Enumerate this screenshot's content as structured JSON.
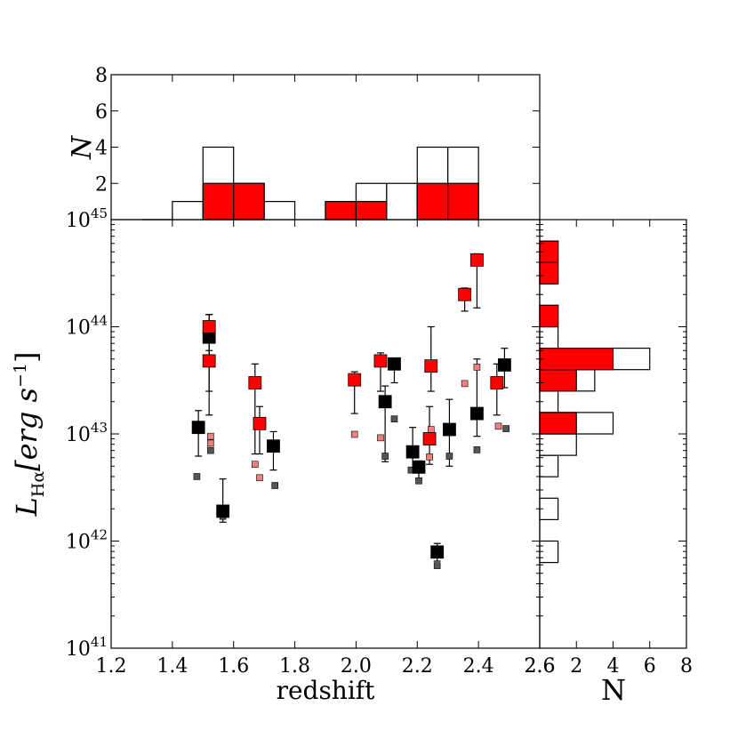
{
  "chart_data": [
    {
      "type": "scatter",
      "name": "luminosity-vs-redshift",
      "xlabel": "redshift",
      "ylabel": "L_Hα[erg s^-1]",
      "ylabel_parts": {
        "main": "L",
        "sub": "Hα",
        "bracket": "[erg s",
        "sup": "−1",
        "close": "]"
      },
      "xlim": [
        1.2,
        2.6
      ],
      "ylim": [
        1e+41,
        1e+45
      ],
      "yscale": "log",
      "x_ticks": [
        "1.2",
        "1.4",
        "1.6",
        "1.8",
        "2.0",
        "2.2",
        "2.4",
        "2.6"
      ],
      "y_ticks": [
        {
          "value": 1e+41,
          "base": "10",
          "exp": "41"
        },
        {
          "value": 1e+42,
          "base": "10",
          "exp": "42"
        },
        {
          "value": 1e+43,
          "base": "10",
          "exp": "43"
        },
        {
          "value": 1e+44,
          "base": "10",
          "exp": "44"
        },
        {
          "value": 1e+45,
          "base": "10",
          "exp": "45"
        }
      ],
      "grid": false,
      "series": [
        {
          "role": "black",
          "color": "#000000",
          "points": [
            {
              "x": 1.485,
              "y": 1.15e+43,
              "lo": 6.2e+42,
              "hi": 1.65e+43
            },
            {
              "x": 1.52,
              "y": 8e+43,
              "lo": 1.5e+43,
              "hi": 1.3e+44
            },
            {
              "x": 1.565,
              "y": 1.9e+42,
              "lo": 1.5e+42,
              "hi": 3.8e+42
            },
            {
              "x": 1.73,
              "y": 7.7e+42,
              "lo": 4.6e+42,
              "hi": 1.05e+43
            },
            {
              "x": 2.095,
              "y": 2e+43,
              "lo": 5.5e+42,
              "hi": 2.8e+43
            },
            {
              "x": 2.125,
              "y": 4.5e+43,
              "lo": 3e+43,
              "hi": 5e+43
            },
            {
              "x": 2.185,
              "y": 6.8e+42,
              "lo": 4.5e+42,
              "hi": 1.15e+43
            },
            {
              "x": 2.205,
              "y": 4.9e+42,
              "lo": 3.8e+42,
              "hi": 5.6e+42
            },
            {
              "x": 2.265,
              "y": 7.9e+41,
              "lo": 6.5e+41,
              "hi": 9.5e+41
            },
            {
              "x": 2.305,
              "y": 1.1e+43,
              "lo": 5e+42,
              "hi": 2.1e+43
            },
            {
              "x": 2.395,
              "y": 1.55e+43,
              "lo": 9.5e+42,
              "hi": 5e+43
            },
            {
              "x": 2.485,
              "y": 4.4e+43,
              "lo": 2.7e+43,
              "hi": 6.3e+43
            }
          ]
        },
        {
          "role": "red",
          "color": "#ff0000",
          "points": [
            {
              "x": 1.52,
              "y": 1e+44,
              "lo": 5e+43,
              "hi": 1.3e+44
            },
            {
              "x": 1.52,
              "y": 4.8e+43,
              "lo": 2.5e+43,
              "hi": 6e+43
            },
            {
              "x": 1.67,
              "y": 3e+43,
              "lo": 6.5e+42,
              "hi": 4.5e+43
            },
            {
              "x": 1.685,
              "y": 1.25e+43,
              "lo": 6.5e+42,
              "hi": 1.8e+43
            },
            {
              "x": 1.995,
              "y": 3.2e+43,
              "lo": 1.55e+43,
              "hi": 3.8e+43
            },
            {
              "x": 2.08,
              "y": 4.8e+43,
              "lo": 2.5e+43,
              "hi": 5.7e+43
            },
            {
              "x": 2.245,
              "y": 4.3e+43,
              "lo": 2.5e+43,
              "hi": 1e+44
            },
            {
              "x": 2.24,
              "y": 9e+42,
              "lo": 5.2e+42,
              "hi": 1.8e+43
            },
            {
              "x": 2.355,
              "y": 2e+44,
              "lo": 1.4e+44,
              "hi": 2.3e+44
            },
            {
              "x": 2.395,
              "y": 4.2e+44,
              "lo": 1.5e+44,
              "hi": 4.8e+44
            },
            {
              "x": 2.46,
              "y": 3e+43,
              "lo": 1.5e+43,
              "hi": 4.5e+43
            }
          ]
        },
        {
          "role": "grey-small",
          "color": "#555555",
          "points": [
            {
              "x": 1.48,
              "y": 4e+42
            },
            {
              "x": 1.525,
              "y": 7e+42
            },
            {
              "x": 1.565,
              "y": 1.7e+42
            },
            {
              "x": 1.735,
              "y": 3.3e+42
            },
            {
              "x": 2.095,
              "y": 6.2e+42
            },
            {
              "x": 2.125,
              "y": 1.38e+43
            },
            {
              "x": 2.18,
              "y": 4.6e+42
            },
            {
              "x": 2.205,
              "y": 3.65e+42
            },
            {
              "x": 2.265,
              "y": 5.9e+41
            },
            {
              "x": 2.305,
              "y": 6.2e+42
            },
            {
              "x": 2.395,
              "y": 7.1e+42
            },
            {
              "x": 2.49,
              "y": 1.12e+43
            }
          ]
        },
        {
          "role": "pink-small",
          "color": "#f08080",
          "points": [
            {
              "x": 1.525,
              "y": 9.5e+42
            },
            {
              "x": 1.525,
              "y": 8.2e+42
            },
            {
              "x": 1.67,
              "y": 5.2e+42
            },
            {
              "x": 1.685,
              "y": 3.9e+42
            },
            {
              "x": 1.995,
              "y": 9.9e+42
            },
            {
              "x": 2.08,
              "y": 9.2e+42
            },
            {
              "x": 2.245,
              "y": 1.1e+43
            },
            {
              "x": 2.24,
              "y": 6.1e+42
            },
            {
              "x": 2.355,
              "y": 2.95e+43
            },
            {
              "x": 2.395,
              "y": 4.2e+43
            },
            {
              "x": 2.465,
              "y": 1.18e+43
            }
          ]
        }
      ]
    },
    {
      "type": "bar",
      "name": "redshift-histogram",
      "ylabel": "N",
      "xlim": [
        1.2,
        2.6
      ],
      "ylim": [
        0,
        8
      ],
      "y_ticks": [
        "2",
        "4",
        "6",
        "8"
      ],
      "bin_edges": [
        1.3,
        1.4,
        1.5,
        1.6,
        1.7,
        1.8,
        1.9,
        2.0,
        2.1,
        2.2,
        2.3,
        2.4
      ],
      "series": [
        {
          "role": "all",
          "color": "#ffffff",
          "values": [
            0,
            1,
            4,
            2,
            1,
            0,
            1,
            2,
            2,
            4,
            4
          ]
        },
        {
          "role": "red",
          "color": "#ff0000",
          "values": [
            0,
            0,
            2,
            2,
            0,
            0,
            1,
            1,
            0,
            2,
            2
          ]
        }
      ]
    },
    {
      "type": "bar",
      "name": "luminosity-histogram",
      "orientation": "horizontal",
      "xlabel": "N",
      "xlim": [
        0,
        8
      ],
      "x_ticks": [
        "2",
        "4",
        "6",
        "8"
      ],
      "x_origin_label": "2.6",
      "yscale": "log",
      "bins_log10": [
        {
          "lo": 41.8,
          "hi": 42.0,
          "all": 1,
          "red": 0
        },
        {
          "lo": 42.2,
          "hi": 42.4,
          "all": 1,
          "red": 0
        },
        {
          "lo": 42.6,
          "hi": 42.8,
          "all": 1,
          "red": 0
        },
        {
          "lo": 42.8,
          "hi": 43.0,
          "all": 2,
          "red": 0
        },
        {
          "lo": 43.0,
          "hi": 43.2,
          "all": 4,
          "red": 2
        },
        {
          "lo": 43.2,
          "hi": 43.4,
          "all": 1,
          "red": 0
        },
        {
          "lo": 43.4,
          "hi": 43.6,
          "all": 3,
          "red": 2
        },
        {
          "lo": 43.6,
          "hi": 43.8,
          "all": 6,
          "red": 4
        },
        {
          "lo": 43.8,
          "hi": 44.0,
          "all": 1,
          "red": 0
        },
        {
          "lo": 44.0,
          "hi": 44.2,
          "all": 1,
          "red": 1
        },
        {
          "lo": 44.4,
          "hi": 44.6,
          "all": 1,
          "red": 1
        },
        {
          "lo": 44.6,
          "hi": 44.8,
          "all": 1,
          "red": 1
        }
      ]
    }
  ]
}
